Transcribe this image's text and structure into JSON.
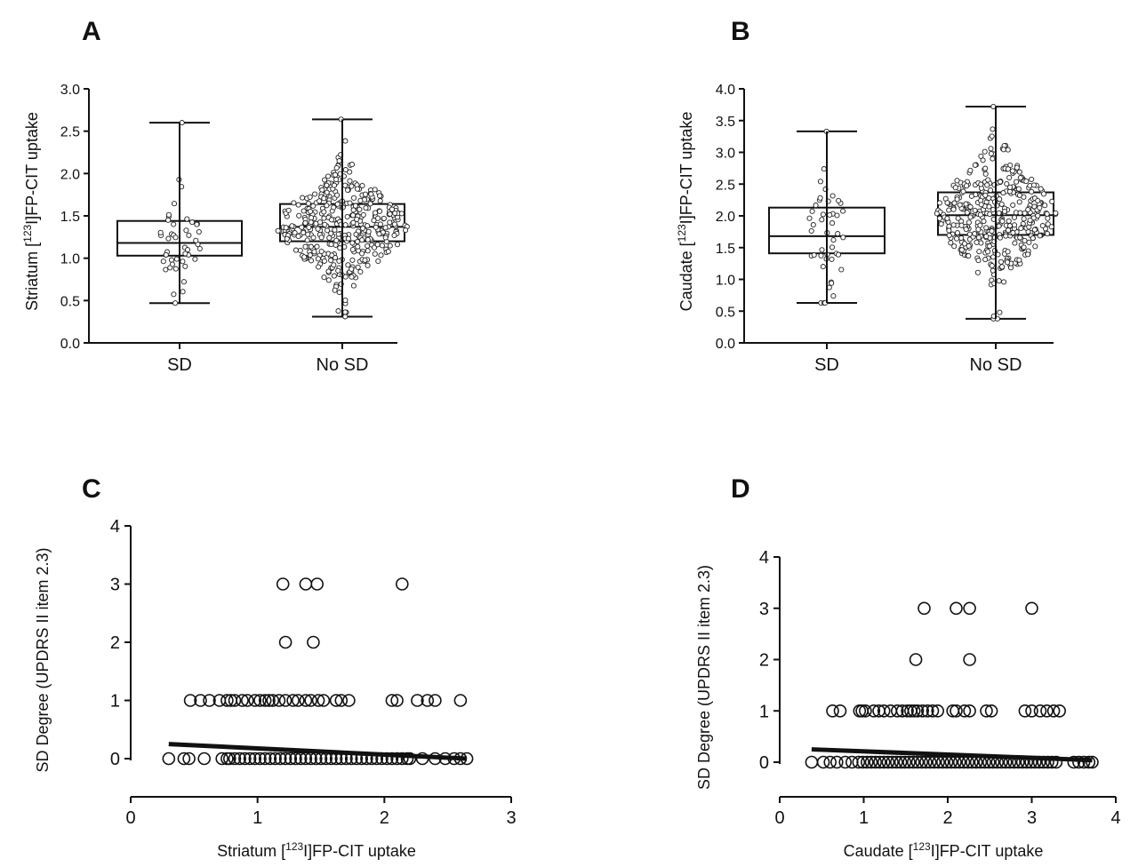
{
  "chart_data": [
    {
      "panel": "A",
      "type": "box",
      "ylabel_parts": [
        "Striatum [",
        "123",
        "I]FP-CIT uptake"
      ],
      "ylim": [
        0,
        3.0
      ],
      "yticks": [
        "0.0",
        "0.5",
        "1.0",
        "1.5",
        "2.0",
        "2.5",
        "3.0"
      ],
      "categories": [
        "SD",
        "No SD"
      ],
      "boxes": [
        {
          "name": "SD",
          "min": 0.47,
          "q1": 1.03,
          "median": 1.18,
          "q3": 1.44,
          "max": 2.6,
          "n_points": 45
        },
        {
          "name": "No SD",
          "min": 0.31,
          "q1": 1.2,
          "median": 1.37,
          "q3": 1.64,
          "max": 2.64,
          "n_points": 400
        }
      ]
    },
    {
      "panel": "B",
      "type": "box",
      "ylabel_parts": [
        "Caudate [",
        "123",
        "I]FP-CIT uptake"
      ],
      "ylim": [
        0,
        4.0
      ],
      "yticks": [
        "0.0",
        "0.5",
        "1.0",
        "1.5",
        "2.0",
        "2.5",
        "3.0",
        "3.5",
        "4.0"
      ],
      "categories": [
        "SD",
        "No SD"
      ],
      "boxes": [
        {
          "name": "SD",
          "min": 0.63,
          "q1": 1.41,
          "median": 1.68,
          "q3": 2.13,
          "max": 3.33,
          "n_points": 45
        },
        {
          "name": "No SD",
          "min": 0.38,
          "q1": 1.7,
          "median": 2.01,
          "q3": 2.37,
          "max": 3.72,
          "n_points": 400
        }
      ]
    },
    {
      "panel": "C",
      "type": "scatter",
      "xlabel_parts": [
        "Striatum [",
        "123",
        "I]FP-CIT uptake"
      ],
      "ylabel": "SD Degree  (UPDRS II item 2.3)",
      "xlim": [
        0,
        3
      ],
      "ylim": [
        0,
        4
      ],
      "xticks": [
        "0",
        "1",
        "2",
        "3"
      ],
      "yticks": [
        "0",
        "1",
        "2",
        "3",
        "4"
      ],
      "regression": {
        "x": [
          0.3,
          2.65
        ],
        "y": [
          0.25,
          0.0
        ]
      },
      "points": [
        {
          "y": 3,
          "x": [
            1.2,
            1.38,
            1.47,
            2.14
          ]
        },
        {
          "y": 2,
          "x": [
            1.22,
            1.44
          ]
        },
        {
          "y": 1,
          "x": [
            0.47,
            0.55,
            0.62,
            0.7,
            0.76,
            0.79,
            0.82,
            0.88,
            0.92,
            0.98,
            1.02,
            1.06,
            1.09,
            1.12,
            1.17,
            1.22,
            1.28,
            1.32,
            1.38,
            1.42,
            1.48,
            1.52,
            1.62,
            1.66,
            1.72,
            2.06,
            2.1,
            2.26,
            2.34,
            2.4,
            2.6
          ]
        },
        {
          "y": 0,
          "x": [
            0.3,
            0.42,
            0.46,
            0.58,
            0.72,
            0.76,
            2.2,
            2.3,
            2.4,
            2.48,
            2.55,
            2.6,
            2.65
          ],
          "dense_from": 0.78,
          "dense_to": 2.18,
          "dense_step": 0.04
        }
      ]
    },
    {
      "panel": "D",
      "type": "scatter",
      "xlabel_parts": [
        "Caudate [",
        "123",
        "I]FP-CIT uptake"
      ],
      "ylabel": "SD Degree  (UPDRS II item 2.3)",
      "xlim": [
        0,
        4
      ],
      "ylim": [
        0,
        4
      ],
      "xticks": [
        "0",
        "1",
        "2",
        "3",
        "4"
      ],
      "yticks": [
        "0",
        "1",
        "2",
        "3",
        "4"
      ],
      "regression": {
        "x": [
          0.38,
          3.72
        ],
        "y": [
          0.25,
          0.04
        ]
      },
      "points": [
        {
          "y": 3,
          "x": [
            1.72,
            2.1,
            2.26,
            3.0
          ]
        },
        {
          "y": 2,
          "x": [
            1.62,
            2.26
          ]
        },
        {
          "y": 1,
          "x": [
            0.63,
            0.72,
            0.95,
            0.98,
            1.02,
            1.12,
            1.18,
            1.24,
            1.32,
            1.4,
            1.46,
            1.52,
            1.56,
            1.6,
            1.64,
            1.7,
            1.76,
            1.82,
            1.88,
            2.06,
            2.1,
            2.2,
            2.26,
            2.46,
            2.52,
            2.92,
            3.0,
            3.1,
            3.18,
            3.26,
            3.33
          ]
        },
        {
          "y": 0,
          "x": [
            0.38,
            0.52,
            0.6,
            0.68,
            0.78,
            0.86,
            3.5,
            3.56,
            3.62,
            3.68,
            3.72
          ],
          "dense_from": 0.94,
          "dense_to": 3.3,
          "dense_step": 0.05
        }
      ]
    }
  ]
}
